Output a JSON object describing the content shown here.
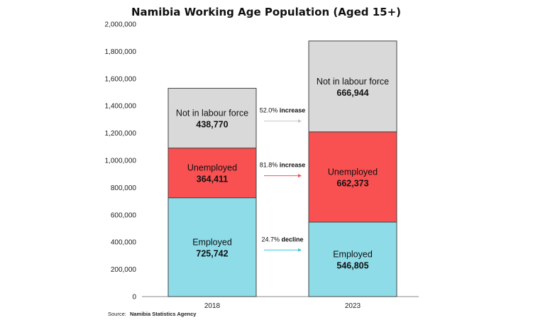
{
  "chart_data": {
    "type": "bar",
    "stacked": true,
    "title": "Namibia Working Age Population (Aged 15+)",
    "categories": [
      "2018",
      "2023"
    ],
    "ylim": [
      0,
      2000000
    ],
    "yticks": [
      "0",
      "200,000",
      "400,000",
      "600,000",
      "800,000",
      "1,000,000",
      "1,200,000",
      "1,400,000",
      "1,600,000",
      "1,800,000",
      "2,000,000"
    ],
    "grid": false,
    "series": [
      {
        "name": "Employed",
        "values": [
          725742,
          546805
        ],
        "labels": [
          "725,742",
          "546,805"
        ],
        "color": "#8ddce8"
      },
      {
        "name": "Unemployed",
        "values": [
          364411,
          662373
        ],
        "labels": [
          "364,411",
          "662,373"
        ],
        "color": "#f95052"
      },
      {
        "name": "Not in labour force",
        "values": [
          438770,
          666944
        ],
        "labels": [
          "438,770",
          "666,944"
        ],
        "color": "#d9d9d9"
      }
    ],
    "changes": [
      {
        "series": "Employed",
        "pct": "24.7%",
        "word": "decline",
        "arrow_color": "#3cc6db"
      },
      {
        "series": "Unemployed",
        "pct": "81.8%",
        "word": "increase",
        "arrow_color": "#f95052"
      },
      {
        "series": "Not in labour force",
        "pct": "52.0%",
        "word": "increase",
        "arrow_color": "#c4c4c4"
      }
    ],
    "source": {
      "prefix": "Source:",
      "name": "Namibia Statistics Agency"
    }
  }
}
